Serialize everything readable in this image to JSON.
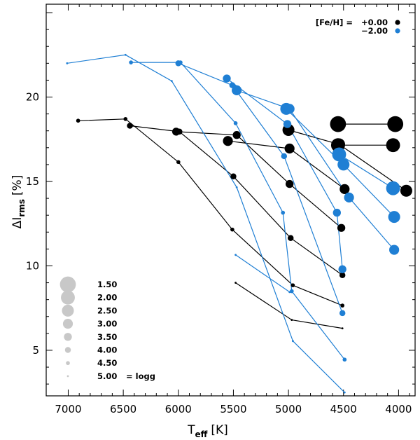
{
  "chart_data": {
    "type": "scatter",
    "title": "",
    "xlabel": {
      "main": "T",
      "sub": "eff",
      "unit": "[K]"
    },
    "ylabel": {
      "main": "ΔI",
      "sub": "rms",
      "unit": "[%]"
    },
    "xlim": [
      7200,
      3850
    ],
    "ylim": [
      2.3,
      25.5
    ],
    "x_ticks": [
      7000,
      6500,
      6000,
      5500,
      5000,
      4500,
      4000
    ],
    "x_tick_labels": [
      "7000",
      "6500",
      "6000",
      "5500",
      "5000",
      "4500",
      "4000"
    ],
    "y_ticks": [
      5,
      10,
      15,
      20
    ],
    "y_tick_labels": [
      "5",
      "10",
      "15",
      "20"
    ],
    "colors": {
      "solar": "#000000",
      "metal_poor": "#1f7fd4",
      "size_legend": "#c8c8c8"
    },
    "metallicity_legend": {
      "label": "[Fe/H] =",
      "entries": [
        {
          "value": "+0.00",
          "color": "#000000"
        },
        {
          "value": "−2.00",
          "color": "#1f7fd4"
        }
      ]
    },
    "logg_legend": {
      "suffix": "= logg",
      "entries": [
        {
          "value": "1.50",
          "logg": 1.5
        },
        {
          "value": "2.00",
          "logg": 2.0
        },
        {
          "value": "2.50",
          "logg": 2.5
        },
        {
          "value": "3.00",
          "logg": 3.0
        },
        {
          "value": "3.50",
          "logg": 3.5
        },
        {
          "value": "4.00",
          "logg": 4.0
        },
        {
          "value": "4.50",
          "logg": 4.5
        },
        {
          "value": "5.00",
          "logg": 5.0
        }
      ]
    },
    "series": [
      {
        "name": "[Fe/H]=+0.00 logg=1.50",
        "feh": "+0.00",
        "logg": 1.5,
        "points": [
          [
            4550,
            18.4
          ],
          [
            4030,
            18.4
          ]
        ]
      },
      {
        "name": "[Fe/H]=+0.00 logg=2.00",
        "feh": "+0.00",
        "logg": 2.0,
        "points": [
          [
            4550,
            17.15
          ],
          [
            4050,
            17.15
          ]
        ]
      },
      {
        "name": "[Fe/H]=+0.00 logg=2.50",
        "feh": "+0.00",
        "logg": 2.5,
        "points": [
          [
            5000,
            18.05
          ],
          [
            4540,
            17.2
          ],
          [
            3930,
            14.45
          ]
        ]
      },
      {
        "name": "[Fe/H]=+0.00 logg=3.00",
        "feh": "+0.00",
        "logg": 3.0,
        "points": [
          [
            5550,
            17.4
          ],
          [
            4990,
            16.95
          ],
          [
            4490,
            14.55
          ]
        ]
      },
      {
        "name": "[Fe/H]=+0.00 logg=3.50",
        "feh": "+0.00",
        "logg": 3.5,
        "points": [
          [
            6020,
            17.95
          ],
          [
            5470,
            17.75
          ],
          [
            4990,
            14.85
          ],
          [
            4520,
            12.25
          ]
        ]
      },
      {
        "name": "[Fe/H]=+0.00 logg=4.00",
        "feh": "+0.00",
        "logg": 4.0,
        "points": [
          [
            6440,
            18.3
          ],
          [
            5990,
            17.95
          ],
          [
            5500,
            15.3
          ],
          [
            4980,
            11.65
          ],
          [
            4510,
            9.45
          ]
        ]
      },
      {
        "name": "[Fe/H]=+0.00 logg=4.50",
        "feh": "+0.00",
        "logg": 4.5,
        "points": [
          [
            6910,
            18.6
          ],
          [
            6480,
            18.7
          ],
          [
            6000,
            16.15
          ],
          [
            5510,
            12.15
          ],
          [
            4960,
            8.85
          ],
          [
            4510,
            7.65
          ]
        ]
      },
      {
        "name": "[Fe/H]=+0.00 logg=5.00",
        "feh": "+0.00",
        "logg": 5.0,
        "points": [
          [
            5480,
            9.0
          ],
          [
            4970,
            6.8
          ],
          [
            4510,
            6.3
          ]
        ]
      },
      {
        "name": "[Fe/H]=-2.00 logg=2.00",
        "feh": "-2.00",
        "logg": 2.0,
        "points": [
          [
            4540,
            16.6
          ],
          [
            4050,
            14.6
          ]
        ]
      },
      {
        "name": "[Fe/H]=-2.00 logg=2.50",
        "feh": "-2.00",
        "logg": 2.5,
        "points": [
          [
            5020,
            19.3
          ],
          [
            4500,
            16.0
          ],
          [
            4040,
            12.9
          ]
        ]
      },
      {
        "name": "[Fe/H]=-2.00 logg=3.00",
        "feh": "-2.00",
        "logg": 3.0,
        "points": [
          [
            5470,
            20.4
          ],
          [
            4990,
            19.3
          ],
          [
            4450,
            14.05
          ],
          [
            4040,
            10.95
          ]
        ]
      },
      {
        "name": "[Fe/H]=-2.00 logg=3.50",
        "feh": "-2.00",
        "logg": 3.5,
        "points": [
          [
            5560,
            21.1
          ],
          [
            5010,
            18.4
          ],
          [
            4560,
            13.15
          ],
          [
            4510,
            9.8
          ]
        ]
      },
      {
        "name": "[Fe/H]=-2.00 logg=4.00",
        "feh": "-2.00",
        "logg": 4.0,
        "points": [
          [
            6000,
            22.0
          ],
          [
            5510,
            20.7
          ],
          [
            5040,
            16.5
          ],
          [
            4510,
            7.2
          ]
        ]
      },
      {
        "name": "[Fe/H]=-2.00 logg=4.50",
        "feh": "-2.00",
        "logg": 4.5,
        "points": [
          [
            6430,
            22.05
          ],
          [
            5980,
            22.05
          ],
          [
            5480,
            18.45
          ],
          [
            5050,
            13.15
          ],
          [
            4970,
            8.5
          ],
          [
            4490,
            4.45
          ]
        ]
      },
      {
        "name": "[Fe/H]=-2.00 logg=5.00a",
        "feh": "-2.00",
        "logg": 5.0,
        "points": [
          [
            7010,
            22.0
          ],
          [
            6480,
            22.5
          ],
          [
            6060,
            20.95
          ],
          [
            5470,
            14.65
          ],
          [
            4960,
            5.55
          ],
          [
            4490,
            2.5
          ]
        ]
      },
      {
        "name": "[Fe/H]=-2.00 logg=5.00b",
        "feh": "-2.00",
        "logg": 5.0,
        "points": [
          [
            5480,
            10.65
          ],
          [
            4990,
            8.45
          ]
        ]
      }
    ]
  }
}
